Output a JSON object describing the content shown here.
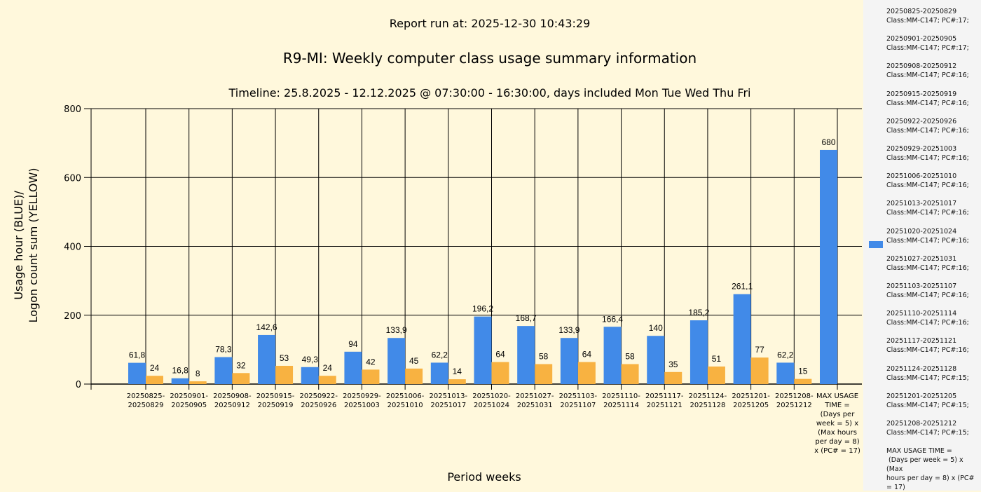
{
  "chart_data": {
    "type": "bar",
    "report_run": "Report run at: 2025-12-30 10:43:29",
    "title": "R9-MI: Weekly computer class usage summary information",
    "subtitle": "Timeline:  25.8.2025  - 12.12.2025  @  07:30:00 -  16:30:00, days included Mon Tue Wed Thu Fri",
    "xlabel": "Period weeks",
    "ylabel_line1": "Usage hour (BLUE)/",
    "ylabel_line2": "Logon count sum (YELLOW)",
    "ylim": [
      0,
      800
    ],
    "yticks": [
      "0",
      "200",
      "400",
      "600",
      "800"
    ],
    "grid": true,
    "categories": [
      "20250825-\n20250829",
      "20250901-\n20250905",
      "20250908-\n20250912",
      "20250915-\n20250919",
      "20250922-\n20250926",
      "20250929-\n20251003",
      "20251006-\n20251010",
      "20251013-\n20251017",
      "20251020-\n20251024",
      "20251027-\n20251031",
      "20251103-\n20251107",
      "20251110-\n20251114",
      "20251117-\n20251121",
      "20251124-\n20251128",
      "20251201-\n20251205",
      "20251208-\n20251212",
      "MAX USAGE\nTIME =\n(Days per\nweek = 5) x\n(Max hours\nper day = 8)\nx (PC# = 17)"
    ],
    "series": [
      {
        "name": "Usage hour",
        "color": "#418ae8",
        "values": [
          61.8,
          16.8,
          78.3,
          142.6,
          49.3,
          94,
          133.9,
          62.2,
          196.2,
          168.7,
          133.9,
          166.4,
          140,
          185.2,
          261.1,
          62.2,
          680
        ],
        "labels": [
          "61,8",
          "16,8",
          "78,3",
          "142,6",
          "49,3",
          "94",
          "133,9",
          "62,2",
          "196,2",
          "168,7",
          "133,9",
          "166,4",
          "140",
          "185,2",
          "261,1",
          "62,2",
          "680"
        ]
      },
      {
        "name": "Logon count sum",
        "color": "#f8b241",
        "values": [
          24,
          8,
          32,
          53,
          24,
          42,
          45,
          14,
          64,
          58,
          64,
          58,
          35,
          51,
          77,
          15,
          null
        ],
        "labels": [
          "24",
          "8",
          "32",
          "53",
          "24",
          "42",
          "45",
          "14",
          "64",
          "58",
          "64",
          "58",
          "35",
          "51",
          "77",
          "15",
          null
        ]
      }
    ],
    "legend_placement": "right",
    "legend_entries": [
      "20250825-20250829\nClass:MM-C147; PC#:17;",
      "20250901-20250905\nClass:MM-C147; PC#:17;",
      "20250908-20250912\nClass:MM-C147; PC#:16;",
      "20250915-20250919\nClass:MM-C147; PC#:16;",
      "20250922-20250926\nClass:MM-C147; PC#:16;",
      "20250929-20251003\nClass:MM-C147; PC#:16;",
      "20251006-20251010\nClass:MM-C147; PC#:16;",
      "20251013-20251017\nClass:MM-C147; PC#:16;",
      "20251020-20251024\nClass:MM-C147; PC#:16;",
      "20251027-20251031\nClass:MM-C147; PC#:16;",
      "20251103-20251107\nClass:MM-C147; PC#:16;",
      "20251110-20251114\nClass:MM-C147; PC#:16;",
      "20251117-20251121\nClass:MM-C147; PC#:16;",
      "20251124-20251128\nClass:MM-C147; PC#:15;",
      "20251201-20251205\nClass:MM-C147; PC#:15;",
      "20251208-20251212\nClass:MM-C147; PC#:15;",
      "MAX USAGE TIME =\n (Days per week = 5) x (Max\nhours per day = 8) x (PC#\n= 17)"
    ]
  }
}
